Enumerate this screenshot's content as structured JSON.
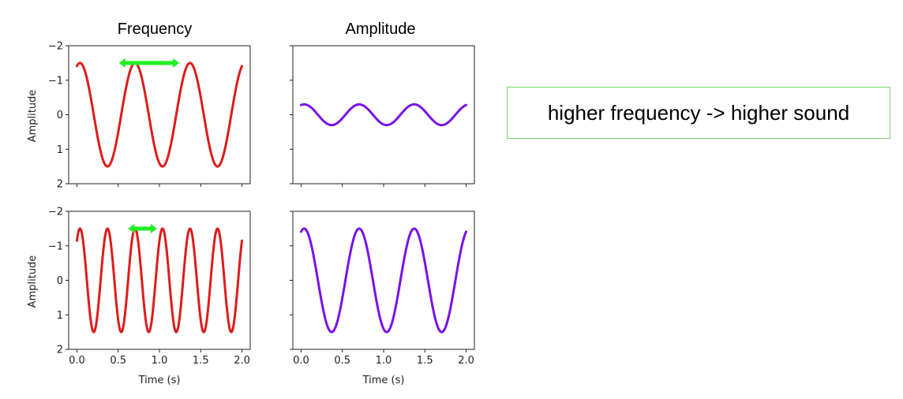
{
  "chart_data": [
    {
      "type": "line",
      "title": "Frequency",
      "xlabel": "",
      "ylabel": "Amplitude",
      "xlim": [
        -0.1,
        2.1
      ],
      "ylim": [
        2,
        -2
      ],
      "y_inverted": true,
      "xticks": [
        0.0,
        0.5,
        1.0,
        1.5,
        2.0
      ],
      "xtick_labels_visible": false,
      "yticks": [
        -2,
        -1,
        0,
        1,
        2
      ],
      "ytick_labels": [
        "−2",
        "−1",
        "0",
        "1",
        "2"
      ],
      "series": [
        {
          "color": "#dd1c1c",
          "amplitude": 1.5,
          "frequency_hz": 1.5,
          "phase_deg": 20,
          "x_range": [
            0,
            2
          ]
        }
      ],
      "annotation": {
        "type": "double-arrow",
        "color": "#22ee22",
        "from": [
          0.51,
          -1.5
        ],
        "to": [
          1.24,
          -1.5
        ]
      }
    },
    {
      "type": "line",
      "title": "Amplitude",
      "xlabel": "",
      "ylabel": "",
      "xlim": [
        -0.1,
        2.1
      ],
      "ylim": [
        2,
        -2
      ],
      "y_inverted": true,
      "xticks": [
        0.0,
        0.5,
        1.0,
        1.5,
        2.0
      ],
      "xtick_labels_visible": false,
      "ytick_labels_visible": false,
      "series": [
        {
          "color": "#7a12e8",
          "amplitude": 0.3,
          "frequency_hz": 1.5,
          "phase_deg": 20,
          "x_range": [
            0,
            2
          ]
        }
      ]
    },
    {
      "type": "line",
      "title": "",
      "xlabel": "Time (s)",
      "ylabel": "Amplitude",
      "xlim": [
        -0.1,
        2.1
      ],
      "ylim": [
        2,
        -2
      ],
      "y_inverted": true,
      "xticks": [
        0.0,
        0.5,
        1.0,
        1.5,
        2.0
      ],
      "xtick_labels": [
        "0.0",
        "0.5",
        "1.0",
        "1.5",
        "2.0"
      ],
      "yticks": [
        -2,
        -1,
        0,
        1,
        2
      ],
      "ytick_labels": [
        "−2",
        "−1",
        "0",
        "1",
        "2"
      ],
      "series": [
        {
          "color": "#dd1c1c",
          "amplitude": 1.5,
          "frequency_hz": 3.0,
          "phase_deg": 40,
          "x_range": [
            0,
            2
          ]
        }
      ],
      "annotation": {
        "type": "double-arrow",
        "color": "#22ee22",
        "from": [
          0.62,
          -1.5
        ],
        "to": [
          0.97,
          -1.5
        ]
      }
    },
    {
      "type": "line",
      "title": "",
      "xlabel": "Time (s)",
      "ylabel": "",
      "xlim": [
        -0.1,
        2.1
      ],
      "ylim": [
        2,
        -2
      ],
      "y_inverted": true,
      "xticks": [
        0.0,
        0.5,
        1.0,
        1.5,
        2.0
      ],
      "xtick_labels": [
        "0.0",
        "0.5",
        "1.0",
        "1.5",
        "2.0"
      ],
      "ytick_labels_visible": false,
      "series": [
        {
          "color": "#7a12e8",
          "amplitude": 1.5,
          "frequency_hz": 1.5,
          "phase_deg": 20,
          "x_range": [
            0,
            2
          ]
        }
      ]
    }
  ],
  "note": {
    "text": "higher frequency -> higher sound"
  }
}
